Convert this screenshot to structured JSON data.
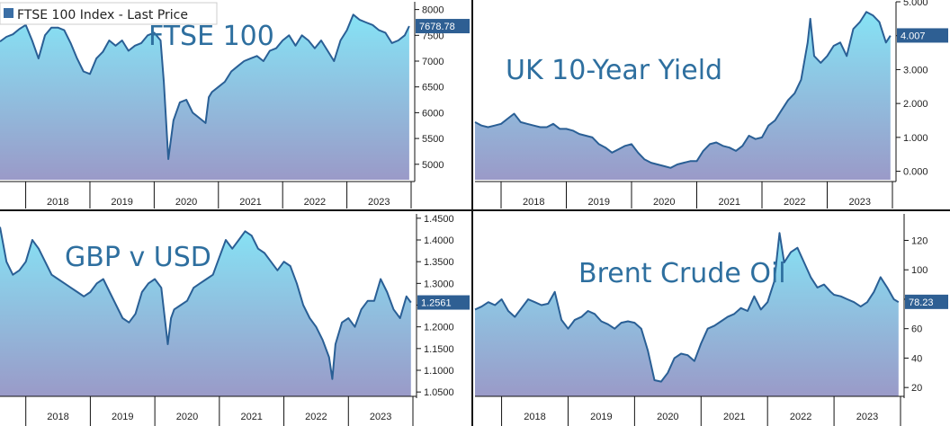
{
  "legend": {
    "label": "FTSE 100 Index - Last Price",
    "swatch_color": "#3a6ea5"
  },
  "colors": {
    "line": "#2a5f95",
    "fill_top": "#86e3f5",
    "fill_bottom": "#9a9ac8",
    "flag": "#2e5f93",
    "frame": "#111111"
  },
  "chart_data": [
    {
      "type": "area",
      "title": "FTSE 100",
      "x_labels": [
        "2018",
        "2019",
        "2020",
        "2021",
        "2022",
        "2023"
      ],
      "x_range": [
        2017.6,
        2024.0
      ],
      "ylim": [
        4700,
        8150
      ],
      "y_ticks": [
        5000,
        5500,
        6000,
        6500,
        7000,
        7500,
        8000
      ],
      "y_tick_labels": [
        "5000",
        "5500",
        "6000",
        "6500",
        "7000",
        "7500",
        "8000"
      ],
      "last_value": 7678.78,
      "last_label": "7678.78",
      "series": [
        {
          "x": [
            2017.6,
            2017.7,
            2017.8,
            2017.9,
            2018.0,
            2018.1,
            2018.2,
            2018.3,
            2018.4,
            2018.5,
            2018.6,
            2018.7,
            2018.8,
            2018.9,
            2019.0,
            2019.1,
            2019.2,
            2019.3,
            2019.4,
            2019.5,
            2019.6,
            2019.7,
            2019.8,
            2019.9,
            2020.0,
            2020.1,
            2020.15,
            2020.22,
            2020.3,
            2020.4,
            2020.5,
            2020.6,
            2020.7,
            2020.8,
            2020.85,
            2020.9,
            2021.0,
            2021.1,
            2021.2,
            2021.3,
            2021.4,
            2021.5,
            2021.6,
            2021.7,
            2021.8,
            2021.9,
            2022.0,
            2022.1,
            2022.2,
            2022.3,
            2022.4,
            2022.5,
            2022.6,
            2022.7,
            2022.8,
            2022.9,
            2023.0,
            2023.1,
            2023.2,
            2023.3,
            2023.4,
            2023.5,
            2023.6,
            2023.7,
            2023.8,
            2023.9,
            2023.97
          ],
          "y": [
            7380,
            7470,
            7520,
            7620,
            7700,
            7400,
            7050,
            7500,
            7650,
            7650,
            7600,
            7350,
            7050,
            6800,
            6750,
            7050,
            7180,
            7400,
            7300,
            7400,
            7200,
            7300,
            7350,
            7500,
            7550,
            7400,
            6600,
            5100,
            5850,
            6200,
            6250,
            6000,
            5900,
            5800,
            6300,
            6400,
            6500,
            6600,
            6800,
            6900,
            7000,
            7050,
            7100,
            7000,
            7200,
            7250,
            7400,
            7500,
            7300,
            7500,
            7400,
            7250,
            7400,
            7200,
            7000,
            7400,
            7600,
            7900,
            7800,
            7750,
            7700,
            7600,
            7550,
            7350,
            7400,
            7500,
            7678
          ]
        }
      ]
    },
    {
      "type": "area",
      "title": "UK 10-Year Yield",
      "x_labels": [
        "2018",
        "2019",
        "2020",
        "2021",
        "2022",
        "2023"
      ],
      "x_range": [
        2017.6,
        2024.0
      ],
      "ylim": [
        -0.25,
        5.0
      ],
      "y_ticks": [
        0,
        1,
        2,
        3,
        4,
        5
      ],
      "y_tick_labels": [
        "0.000",
        "1.000",
        "2.000",
        "3.000",
        "4.000",
        "5.000"
      ],
      "last_value": 4.007,
      "last_label": "4.007",
      "series": [
        {
          "x": [
            2017.6,
            2017.7,
            2017.8,
            2017.9,
            2018.0,
            2018.1,
            2018.2,
            2018.3,
            2018.4,
            2018.5,
            2018.6,
            2018.7,
            2018.8,
            2018.9,
            2019.0,
            2019.1,
            2019.2,
            2019.3,
            2019.4,
            2019.5,
            2019.6,
            2019.7,
            2019.8,
            2019.9,
            2020.0,
            2020.1,
            2020.2,
            2020.3,
            2020.4,
            2020.5,
            2020.6,
            2020.7,
            2020.8,
            2020.9,
            2021.0,
            2021.1,
            2021.2,
            2021.3,
            2021.4,
            2021.5,
            2021.6,
            2021.7,
            2021.8,
            2021.9,
            2022.0,
            2022.1,
            2022.2,
            2022.3,
            2022.4,
            2022.5,
            2022.6,
            2022.7,
            2022.74,
            2022.8,
            2022.9,
            2023.0,
            2023.1,
            2023.2,
            2023.3,
            2023.4,
            2023.5,
            2023.6,
            2023.7,
            2023.8,
            2023.9,
            2023.97
          ],
          "y": [
            1.45,
            1.35,
            1.3,
            1.35,
            1.4,
            1.55,
            1.7,
            1.45,
            1.4,
            1.35,
            1.3,
            1.3,
            1.4,
            1.25,
            1.25,
            1.2,
            1.1,
            1.05,
            1.0,
            0.8,
            0.7,
            0.55,
            0.65,
            0.75,
            0.8,
            0.55,
            0.35,
            0.25,
            0.2,
            0.15,
            0.1,
            0.2,
            0.25,
            0.3,
            0.3,
            0.6,
            0.8,
            0.85,
            0.75,
            0.7,
            0.6,
            0.75,
            1.05,
            0.95,
            1.0,
            1.35,
            1.5,
            1.8,
            2.1,
            2.3,
            2.7,
            3.8,
            4.5,
            3.4,
            3.2,
            3.4,
            3.7,
            3.8,
            3.4,
            4.2,
            4.4,
            4.7,
            4.6,
            4.4,
            3.8,
            4.0
          ]
        }
      ]
    },
    {
      "type": "area",
      "title": "GBP v USD",
      "x_labels": [
        "2018",
        "2019",
        "2020",
        "2021",
        "2022",
        "2023"
      ],
      "x_range": [
        2017.6,
        2024.0
      ],
      "ylim": [
        1.04,
        1.46
      ],
      "y_ticks": [
        1.05,
        1.1,
        1.15,
        1.2,
        1.25,
        1.3,
        1.35,
        1.4,
        1.45
      ],
      "y_tick_labels": [
        "1.0500",
        "1.1000",
        "1.1500",
        "1.2000",
        "1.2500",
        "1.3000",
        "1.3500",
        "1.4000",
        "1.4500"
      ],
      "last_value": 1.2561,
      "last_label": "1.2561",
      "series": [
        {
          "x": [
            2017.6,
            2017.7,
            2017.8,
            2017.9,
            2018.0,
            2018.1,
            2018.2,
            2018.3,
            2018.4,
            2018.5,
            2018.6,
            2018.7,
            2018.8,
            2018.9,
            2019.0,
            2019.1,
            2019.2,
            2019.3,
            2019.4,
            2019.5,
            2019.6,
            2019.7,
            2019.8,
            2019.9,
            2020.0,
            2020.1,
            2020.2,
            2020.25,
            2020.3,
            2020.4,
            2020.5,
            2020.6,
            2020.7,
            2020.8,
            2020.9,
            2021.0,
            2021.1,
            2021.2,
            2021.3,
            2021.4,
            2021.5,
            2021.6,
            2021.7,
            2021.8,
            2021.9,
            2022.0,
            2022.1,
            2022.2,
            2022.3,
            2022.4,
            2022.5,
            2022.6,
            2022.7,
            2022.75,
            2022.8,
            2022.9,
            2023.0,
            2023.1,
            2023.2,
            2023.3,
            2023.4,
            2023.5,
            2023.6,
            2023.7,
            2023.8,
            2023.9,
            2023.97
          ],
          "y": [
            1.43,
            1.35,
            1.32,
            1.33,
            1.35,
            1.4,
            1.38,
            1.35,
            1.32,
            1.31,
            1.3,
            1.29,
            1.28,
            1.27,
            1.28,
            1.3,
            1.31,
            1.28,
            1.25,
            1.22,
            1.21,
            1.23,
            1.28,
            1.3,
            1.31,
            1.29,
            1.16,
            1.22,
            1.24,
            1.25,
            1.26,
            1.29,
            1.3,
            1.31,
            1.32,
            1.36,
            1.4,
            1.38,
            1.4,
            1.42,
            1.41,
            1.38,
            1.37,
            1.35,
            1.33,
            1.35,
            1.34,
            1.3,
            1.25,
            1.22,
            1.2,
            1.17,
            1.13,
            1.08,
            1.16,
            1.21,
            1.22,
            1.2,
            1.24,
            1.26,
            1.26,
            1.31,
            1.28,
            1.24,
            1.22,
            1.27,
            1.2561
          ]
        }
      ]
    },
    {
      "type": "area",
      "title": "Brent Crude Oil",
      "x_labels": [
        "2018",
        "2019",
        "2020",
        "2021",
        "2022",
        "2023"
      ],
      "x_range": [
        2017.6,
        2024.0
      ],
      "ylim": [
        14,
        138
      ],
      "y_ticks": [
        20,
        40,
        60,
        80,
        100,
        120
      ],
      "y_tick_labels": [
        "20",
        "40",
        "60",
        "80",
        "100",
        "120"
      ],
      "last_value": 78.23,
      "last_label": "78.23",
      "series": [
        {
          "x": [
            2017.6,
            2017.7,
            2017.8,
            2017.9,
            2018.0,
            2018.1,
            2018.2,
            2018.3,
            2018.4,
            2018.5,
            2018.6,
            2018.7,
            2018.8,
            2018.9,
            2019.0,
            2019.1,
            2019.2,
            2019.3,
            2019.4,
            2019.5,
            2019.6,
            2019.7,
            2019.8,
            2019.9,
            2020.0,
            2020.1,
            2020.2,
            2020.3,
            2020.4,
            2020.5,
            2020.6,
            2020.7,
            2020.8,
            2020.9,
            2021.0,
            2021.1,
            2021.2,
            2021.3,
            2021.4,
            2021.5,
            2021.6,
            2021.7,
            2021.8,
            2021.9,
            2022.0,
            2022.1,
            2022.18,
            2022.25,
            2022.35,
            2022.45,
            2022.55,
            2022.65,
            2022.75,
            2022.85,
            2022.95,
            2023.0,
            2023.1,
            2023.2,
            2023.3,
            2023.4,
            2023.5,
            2023.6,
            2023.7,
            2023.8,
            2023.9,
            2023.97
          ],
          "y": [
            73,
            75,
            78,
            76,
            80,
            72,
            68,
            74,
            80,
            78,
            76,
            77,
            85,
            66,
            60,
            66,
            68,
            72,
            70,
            65,
            63,
            60,
            64,
            65,
            64,
            60,
            45,
            25,
            24,
            30,
            40,
            43,
            42,
            38,
            50,
            60,
            62,
            65,
            68,
            70,
            74,
            72,
            82,
            73,
            78,
            92,
            125,
            105,
            112,
            115,
            105,
            95,
            88,
            90,
            85,
            83,
            82,
            80,
            78,
            75,
            78,
            85,
            95,
            88,
            80,
            78
          ]
        }
      ]
    }
  ]
}
